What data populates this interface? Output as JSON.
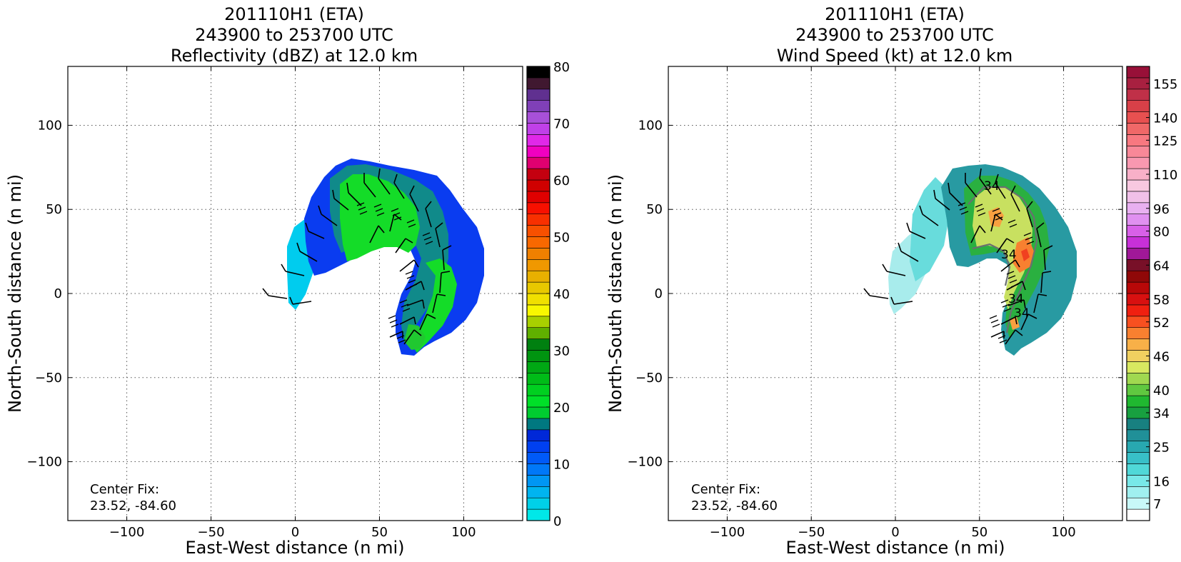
{
  "chart_data": [
    {
      "type": "heatmap",
      "title_lines": [
        "201110H1 (ETA)",
        "243900 to 253700 UTC",
        "Reflectivity (dBZ) at 12.0 km"
      ],
      "xlabel": "East-West distance (n mi)",
      "ylabel": "North-South distance (n mi)",
      "xlim": [
        -135,
        135
      ],
      "ylim": [
        -135,
        135
      ],
      "xticks": [
        -100,
        -50,
        0,
        50,
        100
      ],
      "yticks": [
        -100,
        -50,
        0,
        50,
        100
      ],
      "grid": true,
      "annotation_lines": [
        "Center Fix:",
        "23.52, -84.60"
      ],
      "colorbar": {
        "ticks": [
          "0",
          "10",
          "20",
          "30",
          "40",
          "50",
          "60",
          "70",
          "80"
        ],
        "range": [
          0,
          80
        ],
        "colors": [
          "#00e8e8",
          "#00d0e8",
          "#00b4f0",
          "#0096f4",
          "#0078f8",
          "#005af8",
          "#0040f0",
          "#0028d8",
          "#007880",
          "#00cc30",
          "#00e028",
          "#00d020",
          "#00bc18",
          "#00a814",
          "#009410",
          "#008010",
          "#60b000",
          "#a8d000",
          "#f8f800",
          "#f0e000",
          "#e8c800",
          "#e8b000",
          "#f09800",
          "#f08000",
          "#f86800",
          "#f85000",
          "#f83000",
          "#f81000",
          "#e00000",
          "#d00000",
          "#c40010",
          "#e00070",
          "#f000c0",
          "#e028e8",
          "#c040e8",
          "#a850d8",
          "#8040b8",
          "#603090",
          "#401830",
          "#000000"
        ]
      }
    },
    {
      "type": "heatmap",
      "title_lines": [
        "201110H1 (ETA)",
        "243900 to 253700 UTC",
        "Wind Speed (kt) at 12.0 km"
      ],
      "xlabel": "East-West distance (n mi)",
      "ylabel": "North-South distance (n mi)",
      "xlim": [
        -135,
        135
      ],
      "ylim": [
        -135,
        135
      ],
      "xticks": [
        -100,
        -50,
        0,
        50,
        100
      ],
      "yticks": [
        -100,
        -50,
        0,
        50,
        100
      ],
      "grid": true,
      "annotation_lines": [
        "Center Fix:",
        "23.52, -84.60"
      ],
      "contour_labels": [
        "34",
        "34",
        "34",
        "34"
      ],
      "colorbar": {
        "ticks": [
          "7",
          "16",
          "25",
          "34",
          "40",
          "46",
          "52",
          "58",
          "64",
          "80",
          "96",
          "110",
          "125",
          "140",
          "155"
        ],
        "colors": [
          "#ffffff",
          "#c8f8f8",
          "#a0f0f0",
          "#78e8e8",
          "#50d8d8",
          "#38c0c8",
          "#28a8b0",
          "#209098",
          "#188080",
          "#18a040",
          "#20b830",
          "#60c840",
          "#a0d850",
          "#d8e860",
          "#f0d060",
          "#f8b048",
          "#f88030",
          "#f85020",
          "#f02010",
          "#d81010",
          "#b80808",
          "#900808",
          "#781028",
          "#a01898",
          "#c830d8",
          "#d860e8",
          "#e090f0",
          "#e8b0f0",
          "#f0c0e8",
          "#f8c8e0",
          "#f8b0c8",
          "#f898b0",
          "#f88898",
          "#f87880",
          "#f06868",
          "#e85050",
          "#d84048",
          "#c03048",
          "#a82040",
          "#981038"
        ]
      }
    }
  ]
}
